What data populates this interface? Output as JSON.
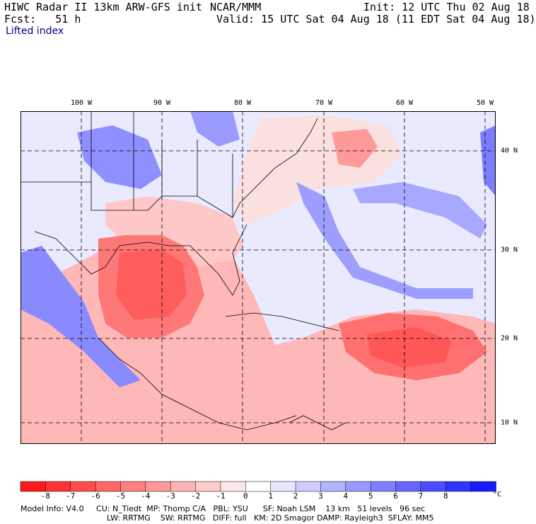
{
  "header": {
    "model": "HIWC Radar II 13km ARW-GFS init",
    "org": "NCAR/MMM",
    "init": "Init: 12 UTC Thu 02 Aug 18",
    "fcst": "Fcst:   51 h",
    "valid": "Valid: 15 UTC Sat 04 Aug 18 (11 EDT Sat 04 Aug 18)"
  },
  "field_name": "Lifted index",
  "map": {
    "lon_labels": [
      "100 W",
      "90 W",
      "80 W",
      "70 W",
      "60 W",
      "50 W"
    ],
    "lat_labels": [
      "40 N",
      "30 N",
      "20 N",
      "10 N"
    ]
  },
  "colorbar": {
    "labels": [
      "-8",
      "-7",
      "-6",
      "-5",
      "-4",
      "-3",
      "-2",
      "-1",
      "0",
      "1",
      "2",
      "3",
      "4",
      "5",
      "6",
      "7",
      "8"
    ],
    "unit": "°C",
    "colors": [
      "#ff1a1a",
      "#ff3333",
      "#ff4d4d",
      "#ff6666",
      "#ff8080",
      "#ff9999",
      "#ffb3b3",
      "#ffcccc",
      "#ffe6e6",
      "#ffffff",
      "#e6e6ff",
      "#ccccff",
      "#b3b3ff",
      "#9999ff",
      "#8080ff",
      "#6666ff",
      "#4d4dff",
      "#3333ff",
      "#1a1aff"
    ]
  },
  "footer": {
    "line1": "Model Info: V4.0     CU: N_Tiedt  MP: Thomp C/A   PBL: YSU      SF: Noah LSM    13 km   51 levels   96 sec",
    "line2": "LW: RRTMG    SW: RRTMG   DIFF: full   KM: 2D Smagor DAMP: Rayleigh3  SFLAY: MM5"
  }
}
